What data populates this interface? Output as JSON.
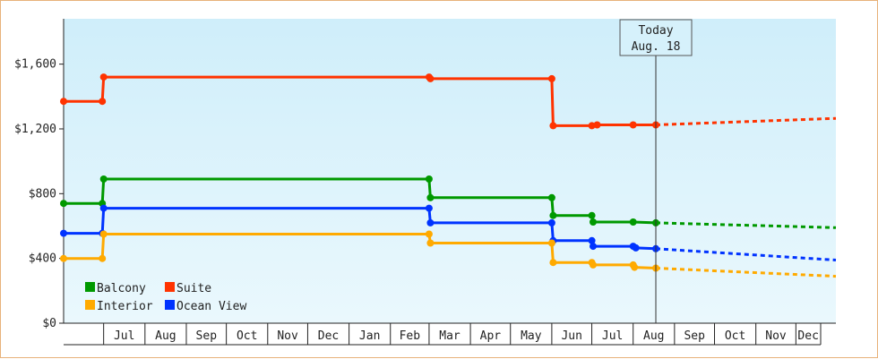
{
  "chart_data": {
    "type": "line",
    "title": "",
    "xlabel": "",
    "ylabel": "",
    "ylim": [
      0,
      1880
    ],
    "y_ticks": [
      {
        "value": 0,
        "label": "$0"
      },
      {
        "value": 400,
        "label": "$400"
      },
      {
        "value": 800,
        "label": "$800"
      },
      {
        "value": 1200,
        "label": "$1,200"
      },
      {
        "value": 1600,
        "label": "$1,600"
      }
    ],
    "x_axis": {
      "start": "2023-06-01",
      "end": "2024-12-31",
      "months": [
        {
          "label": "Jul",
          "start": "2023-07-01"
        },
        {
          "label": "Aug",
          "start": "2023-08-01"
        },
        {
          "label": "Sep",
          "start": "2023-09-01"
        },
        {
          "label": "Oct",
          "start": "2023-10-01"
        },
        {
          "label": "Nov",
          "start": "2023-11-01"
        },
        {
          "label": "Dec",
          "start": "2023-12-01"
        },
        {
          "label": "Jan",
          "start": "2024-01-01"
        },
        {
          "label": "Feb",
          "start": "2024-02-01"
        },
        {
          "label": "Mar",
          "start": "2024-03-01"
        },
        {
          "label": "Apr",
          "start": "2024-04-01"
        },
        {
          "label": "May",
          "start": "2024-05-01"
        },
        {
          "label": "Jun",
          "start": "2024-06-01"
        },
        {
          "label": "Jul",
          "start": "2024-07-01"
        },
        {
          "label": "Aug",
          "start": "2024-08-01"
        },
        {
          "label": "Sep",
          "start": "2024-09-01"
        },
        {
          "label": "Oct",
          "start": "2024-10-01"
        },
        {
          "label": "Nov",
          "start": "2024-11-01"
        },
        {
          "label": "Dec",
          "start": "2024-12-01"
        }
      ]
    },
    "today": {
      "date": "2024-08-18",
      "label_line1": "Today",
      "label_line2": "Aug. 18"
    },
    "legend": {
      "placement": "bottom-left"
    },
    "series": [
      {
        "name": "Suite",
        "color": "#ff3300",
        "points": [
          {
            "x": "2023-06-01",
            "y": 1370
          },
          {
            "x": "2023-06-30",
            "y": 1370
          },
          {
            "x": "2023-07-01",
            "y": 1520
          },
          {
            "x": "2024-03-01",
            "y": 1520
          },
          {
            "x": "2024-03-02",
            "y": 1510
          },
          {
            "x": "2024-06-01",
            "y": 1510
          },
          {
            "x": "2024-06-02",
            "y": 1220
          },
          {
            "x": "2024-07-01",
            "y": 1220
          },
          {
            "x": "2024-07-05",
            "y": 1225
          },
          {
            "x": "2024-08-01",
            "y": 1225
          },
          {
            "x": "2024-08-18",
            "y": 1225
          }
        ],
        "forecast": [
          {
            "x": "2024-08-18",
            "y": 1225
          },
          {
            "x": "2024-12-31",
            "y": 1265
          }
        ]
      },
      {
        "name": "Balcony",
        "color": "#009900",
        "points": [
          {
            "x": "2023-06-01",
            "y": 740
          },
          {
            "x": "2023-06-30",
            "y": 740
          },
          {
            "x": "2023-07-01",
            "y": 890
          },
          {
            "x": "2024-03-01",
            "y": 890
          },
          {
            "x": "2024-03-02",
            "y": 775
          },
          {
            "x": "2024-06-01",
            "y": 775
          },
          {
            "x": "2024-06-02",
            "y": 665
          },
          {
            "x": "2024-07-01",
            "y": 665
          },
          {
            "x": "2024-07-02",
            "y": 625
          },
          {
            "x": "2024-08-01",
            "y": 625
          },
          {
            "x": "2024-08-18",
            "y": 620
          }
        ],
        "forecast": [
          {
            "x": "2024-08-18",
            "y": 620
          },
          {
            "x": "2024-12-31",
            "y": 590
          }
        ]
      },
      {
        "name": "Ocean View",
        "color": "#0033ff",
        "points": [
          {
            "x": "2023-06-01",
            "y": 555
          },
          {
            "x": "2023-06-30",
            "y": 555
          },
          {
            "x": "2023-07-01",
            "y": 710
          },
          {
            "x": "2024-03-01",
            "y": 710
          },
          {
            "x": "2024-03-02",
            "y": 620
          },
          {
            "x": "2024-06-01",
            "y": 620
          },
          {
            "x": "2024-06-02",
            "y": 510
          },
          {
            "x": "2024-07-01",
            "y": 510
          },
          {
            "x": "2024-07-02",
            "y": 475
          },
          {
            "x": "2024-08-01",
            "y": 475
          },
          {
            "x": "2024-08-03",
            "y": 465
          },
          {
            "x": "2024-08-18",
            "y": 460
          }
        ],
        "forecast": [
          {
            "x": "2024-08-18",
            "y": 460
          },
          {
            "x": "2024-12-31",
            "y": 390
          }
        ]
      },
      {
        "name": "Interior",
        "color": "#ffaa00",
        "points": [
          {
            "x": "2023-06-01",
            "y": 400
          },
          {
            "x": "2023-06-30",
            "y": 400
          },
          {
            "x": "2023-07-01",
            "y": 550
          },
          {
            "x": "2024-03-01",
            "y": 550
          },
          {
            "x": "2024-03-02",
            "y": 495
          },
          {
            "x": "2024-06-01",
            "y": 495
          },
          {
            "x": "2024-06-02",
            "y": 375
          },
          {
            "x": "2024-07-01",
            "y": 375
          },
          {
            "x": "2024-07-02",
            "y": 360
          },
          {
            "x": "2024-08-01",
            "y": 360
          },
          {
            "x": "2024-08-02",
            "y": 345
          },
          {
            "x": "2024-08-18",
            "y": 340
          }
        ],
        "forecast": [
          {
            "x": "2024-08-18",
            "y": 340
          },
          {
            "x": "2024-12-31",
            "y": 290
          }
        ]
      }
    ]
  }
}
